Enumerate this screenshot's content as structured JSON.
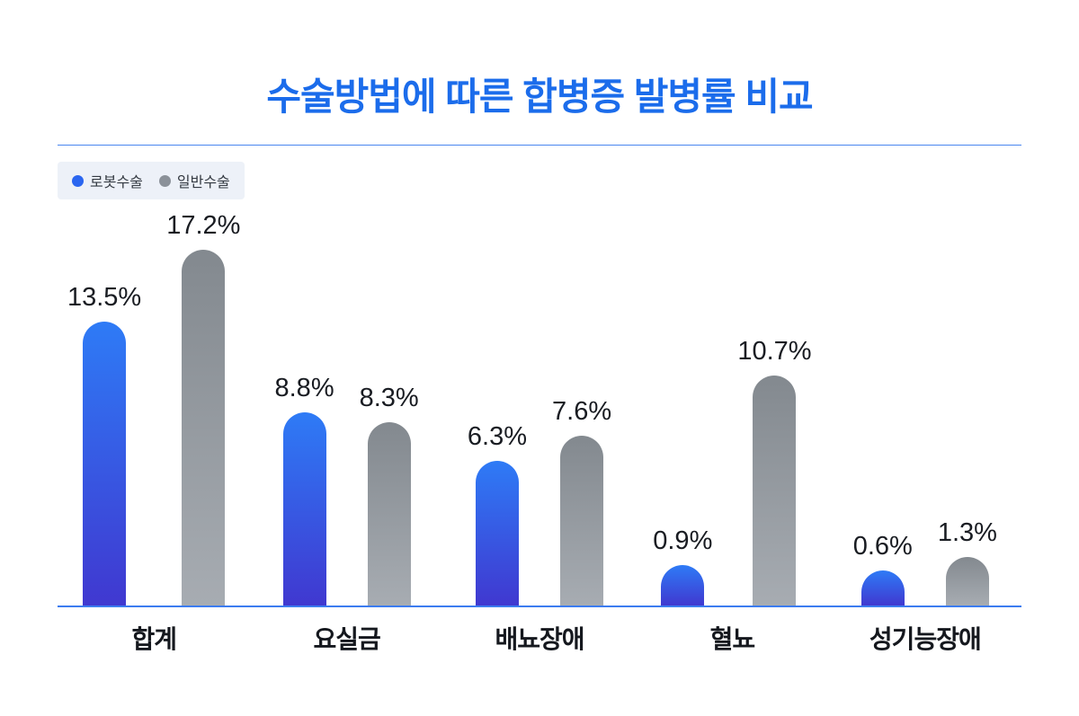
{
  "title": "수술방법에 따른 합병증 발병률 비교",
  "colors": {
    "title": "#1b6ceb",
    "axis_line": "#3c7cf0",
    "legend_background": "#edf1f8",
    "robot_bar_top": "#2e7bf6",
    "robot_bar_bottom": "#4038d0",
    "general_bar_top": "#83898f",
    "general_bar_bottom": "#a7acb2"
  },
  "chart_data": {
    "type": "bar",
    "title": "수술방법에 따른 합병증 발병률 비교",
    "categories": [
      "합계",
      "요실금",
      "배뇨장애",
      "혈뇨",
      "성기능장애"
    ],
    "series": [
      {
        "name": "로봇수술",
        "values": [
          13.5,
          8.8,
          6.3,
          0.9,
          0.6
        ],
        "labels": [
          "13.5%",
          "8.8%",
          "6.3%",
          "0.9%",
          "0.6%"
        ],
        "color_top": "#2e7bf6",
        "color_bottom": "#4038d0",
        "legend_color": "#2b66f0"
      },
      {
        "name": "일반수술",
        "values": [
          17.2,
          8.3,
          7.6,
          10.7,
          1.3
        ],
        "labels": [
          "17.2%",
          "8.3%",
          "7.6%",
          "10.7%",
          "1.3%"
        ],
        "color_top": "#83898f",
        "color_bottom": "#a7acb2",
        "legend_color": "#8b9199"
      }
    ],
    "unit": "%",
    "xlabel": "",
    "ylabel": "",
    "ylim": [
      0,
      18
    ],
    "grid": false,
    "legend_position": "top-left",
    "value_labels_shown": true
  }
}
